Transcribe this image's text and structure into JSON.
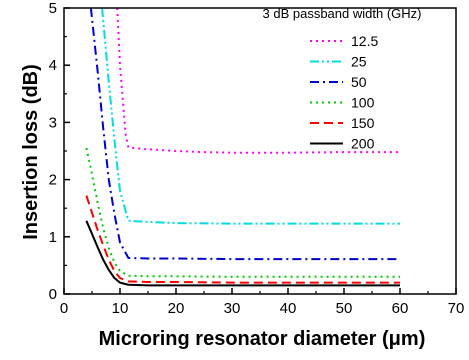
{
  "chart_data": {
    "type": "line",
    "title": "",
    "xlabel": "Microring resonator diameter (μm)",
    "ylabel": "Insertion loss (dB)",
    "xlim": [
      0,
      70
    ],
    "ylim": [
      0,
      5
    ],
    "xticks": [
      "0",
      "10",
      "20",
      "30",
      "40",
      "50",
      "60",
      "70"
    ],
    "yticks": [
      "0",
      "1",
      "2",
      "3",
      "4",
      "5"
    ],
    "grid": false,
    "legend": {
      "title": "3 dB passband width (GHz)",
      "placement": "top-right"
    },
    "series": [
      {
        "name": "12.5",
        "color": "#ff00ff",
        "dash": "dot",
        "x": [
          9.5,
          10,
          11,
          11.5,
          15,
          20,
          25,
          30,
          40,
          50,
          60
        ],
        "y": [
          5.0,
          4.0,
          2.8,
          2.56,
          2.53,
          2.5,
          2.48,
          2.47,
          2.47,
          2.48,
          2.48
        ]
      },
      {
        "name": "25",
        "color": "#00dddd",
        "dash": "dashdotdot",
        "x": [
          6.8,
          8,
          9,
          10,
          11.5,
          15,
          20,
          30,
          40,
          50,
          60
        ],
        "y": [
          5.0,
          3.7,
          2.7,
          1.8,
          1.28,
          1.26,
          1.24,
          1.23,
          1.23,
          1.23,
          1.23
        ]
      },
      {
        "name": "50",
        "color": "#0000cc",
        "dash": "dashdot",
        "x": [
          4.8,
          6,
          7,
          8,
          9,
          10,
          11.5,
          15,
          20,
          30,
          40,
          50,
          60
        ],
        "y": [
          5.0,
          3.9,
          2.9,
          2.0,
          1.4,
          0.9,
          0.63,
          0.62,
          0.62,
          0.61,
          0.61,
          0.61,
          0.61
        ]
      },
      {
        "name": "100",
        "color": "#00cc00",
        "dash": "dot",
        "x": [
          4,
          5,
          6,
          7,
          8,
          9,
          10,
          11.5,
          15,
          20,
          30,
          40,
          50,
          60
        ],
        "y": [
          2.55,
          2.1,
          1.6,
          1.15,
          0.8,
          0.55,
          0.4,
          0.32,
          0.31,
          0.31,
          0.3,
          0.3,
          0.3,
          0.3
        ]
      },
      {
        "name": "150",
        "color": "#ff0000",
        "dash": "dash",
        "x": [
          4,
          5,
          6,
          7,
          8,
          9,
          10,
          11.5,
          15,
          20,
          30,
          40,
          50,
          60
        ],
        "y": [
          1.72,
          1.42,
          1.12,
          0.85,
          0.6,
          0.4,
          0.28,
          0.22,
          0.21,
          0.21,
          0.2,
          0.2,
          0.2,
          0.2
        ]
      },
      {
        "name": "200",
        "color": "#000000",
        "dash": "solid",
        "x": [
          4,
          5,
          6,
          7,
          8,
          9,
          10,
          11.5,
          15,
          20,
          30,
          40,
          50,
          60
        ],
        "y": [
          1.28,
          1.05,
          0.82,
          0.6,
          0.42,
          0.28,
          0.2,
          0.16,
          0.15,
          0.15,
          0.15,
          0.15,
          0.15,
          0.15
        ]
      }
    ]
  }
}
